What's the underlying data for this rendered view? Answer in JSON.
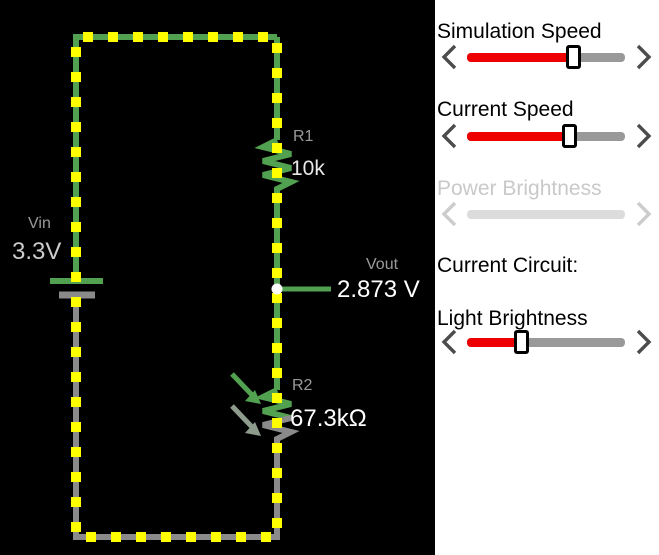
{
  "circuit": {
    "background": "#000000",
    "wire_positive_color": "#51a151",
    "wire_ground_color": "#8a8a8a",
    "current_dot_color": "#ffff00",
    "node_dot_color": "#ffffff",
    "components": {
      "battery": {
        "name": "Vin",
        "value": "3.3V"
      },
      "r1": {
        "name": "R1",
        "value": "10k"
      },
      "r2": {
        "name": "R2",
        "value": "67.3kΩ"
      },
      "vout": {
        "name": "Vout",
        "value": "2.873 V"
      }
    }
  },
  "panel": {
    "background": "#ffffff",
    "accent_color": "#ee0000",
    "section_label": "Current Circuit:",
    "sliders": [
      {
        "label": "Simulation Speed",
        "enabled": true,
        "fill_pct": 68
      },
      {
        "label": "Current Speed",
        "enabled": true,
        "fill_pct": 65
      },
      {
        "label": "Power Brightness",
        "enabled": false,
        "fill_pct": 0
      },
      {
        "label": "Light Brightness",
        "enabled": true,
        "fill_pct": 35
      }
    ]
  }
}
